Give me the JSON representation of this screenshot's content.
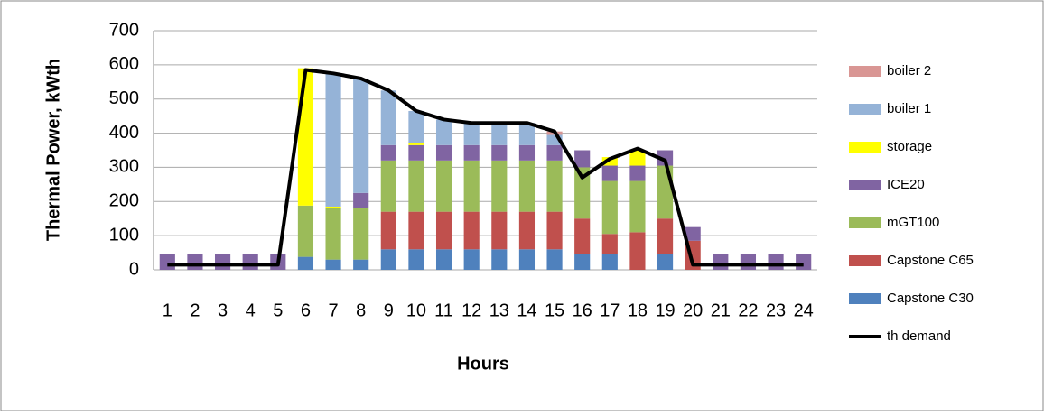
{
  "chart_data": {
    "type": "bar",
    "stacked": true,
    "y_label": "Thermal Power, kWth",
    "x_label": "Hours",
    "categories": [
      "1",
      "2",
      "3",
      "4",
      "5",
      "6",
      "7",
      "8",
      "9",
      "10",
      "11",
      "12",
      "13",
      "14",
      "15",
      "16",
      "17",
      "18",
      "19",
      "20",
      "21",
      "22",
      "23",
      "24"
    ],
    "ylim": [
      0,
      700
    ],
    "yticks": [
      0,
      100,
      200,
      300,
      400,
      500,
      600,
      700
    ],
    "grid": true,
    "series": [
      {
        "name": "Capstone C30",
        "color": "#4f81bd",
        "values": [
          0,
          0,
          0,
          0,
          0,
          38,
          30,
          30,
          60,
          60,
          60,
          60,
          60,
          60,
          60,
          45,
          45,
          0,
          45,
          0,
          0,
          0,
          0,
          0
        ]
      },
      {
        "name": "Capstone C65",
        "color": "#c0504d",
        "values": [
          0,
          0,
          0,
          0,
          0,
          0,
          0,
          0,
          110,
          110,
          110,
          110,
          110,
          110,
          110,
          105,
          60,
          110,
          105,
          85,
          0,
          0,
          0,
          0
        ]
      },
      {
        "name": "mGT100",
        "color": "#9bbb59",
        "values": [
          0,
          0,
          0,
          0,
          0,
          150,
          150,
          150,
          150,
          150,
          150,
          150,
          150,
          150,
          150,
          150,
          155,
          150,
          155,
          0,
          0,
          0,
          0,
          0
        ]
      },
      {
        "name": "ICE20",
        "color": "#8064a2",
        "values": [
          45,
          45,
          45,
          45,
          45,
          0,
          0,
          45,
          45,
          45,
          45,
          45,
          45,
          45,
          45,
          50,
          45,
          45,
          45,
          40,
          45,
          45,
          45,
          45
        ]
      },
      {
        "name": "storage",
        "color": "#ffff00",
        "values": [
          0,
          0,
          0,
          0,
          0,
          402,
          5,
          0,
          0,
          5,
          0,
          0,
          0,
          0,
          0,
          0,
          25,
          45,
          0,
          0,
          0,
          0,
          0,
          0
        ]
      },
      {
        "name": "boiler 1",
        "color": "#95b3d7",
        "values": [
          0,
          0,
          0,
          0,
          0,
          0,
          390,
          335,
          160,
          95,
          75,
          65,
          65,
          65,
          30,
          0,
          0,
          0,
          0,
          0,
          0,
          0,
          0,
          0
        ]
      },
      {
        "name": "boiler 2",
        "color": "#d99694",
        "values": [
          0,
          0,
          0,
          0,
          0,
          0,
          0,
          0,
          0,
          0,
          0,
          0,
          0,
          0,
          10,
          0,
          0,
          0,
          0,
          0,
          0,
          0,
          0,
          0
        ]
      },
      {
        "name": "th demand",
        "color": "#000000",
        "type": "line",
        "values": [
          15,
          15,
          15,
          15,
          15,
          585,
          575,
          560,
          525,
          465,
          440,
          430,
          430,
          430,
          405,
          270,
          325,
          355,
          320,
          15,
          15,
          15,
          15,
          15
        ]
      }
    ]
  }
}
